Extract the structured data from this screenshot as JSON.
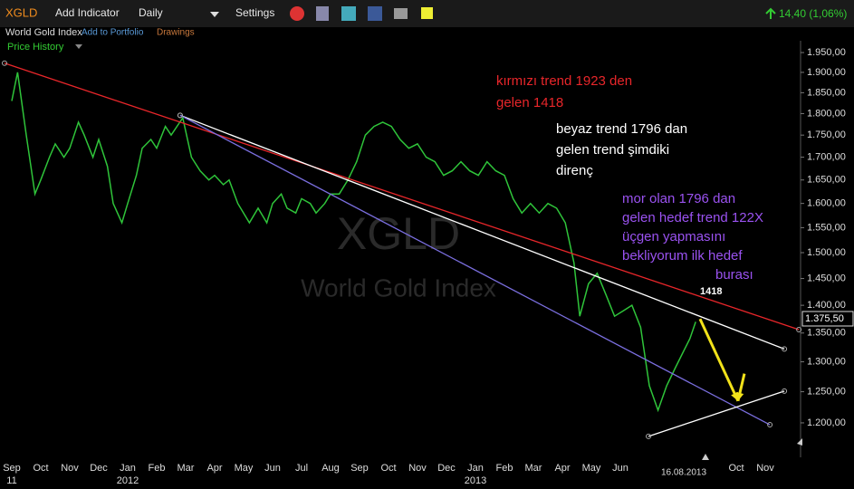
{
  "toolbar": {
    "symbol": "XGLD",
    "add_indicator": "Add Indicator",
    "interval": "Daily",
    "settings": "Settings",
    "change": "14,40 (1,06%)"
  },
  "subbar": {
    "name": "World Gold Index",
    "add_portfolio": "Add to Portfolio",
    "drawings": "Drawings",
    "price_history": "Price History"
  },
  "chart_data": {
    "type": "line",
    "log_scale": true,
    "grid": false,
    "watermark": {
      "symbol": "XGLD",
      "name": "World Gold Index"
    },
    "categories": [
      "Sep",
      "Oct",
      "Nov",
      "Dec",
      "Jan",
      "Feb",
      "Mar",
      "Apr",
      "May",
      "Jun",
      "Jul",
      "Aug",
      "Sep",
      "Oct",
      "Nov",
      "Dec",
      "Jan",
      "Feb",
      "Mar",
      "Apr",
      "May",
      "Jun",
      null,
      null,
      null,
      "Oct",
      "Nov"
    ],
    "year_labels": [
      {
        "index": 0,
        "label": "11"
      },
      {
        "index": 4,
        "label": "2012"
      },
      {
        "index": 16,
        "label": "2013"
      }
    ],
    "cursor_label": "16.08.2013",
    "ylim": [
      1147,
      2016
    ],
    "yticks": [
      {
        "value": 1950,
        "label": "1.950,00"
      },
      {
        "value": 1900,
        "label": "1.900,00"
      },
      {
        "value": 1850,
        "label": "1.850,00"
      },
      {
        "value": 1800,
        "label": "1.800,00"
      },
      {
        "value": 1750,
        "label": "1.750,00"
      },
      {
        "value": 1700,
        "label": "1.700,00"
      },
      {
        "value": 1650,
        "label": "1.650,00"
      },
      {
        "value": 1600,
        "label": "1.600,00"
      },
      {
        "value": 1550,
        "label": "1.550,00"
      },
      {
        "value": 1500,
        "label": "1.500,00"
      },
      {
        "value": 1450,
        "label": "1.450,00"
      },
      {
        "value": 1400,
        "label": "1.400,00"
      },
      {
        "value": 1350,
        "label": "1.350,00"
      },
      {
        "value": 1300,
        "label": "1.300,00"
      },
      {
        "value": 1250,
        "label": "1.250,00"
      },
      {
        "value": 1200,
        "label": "1.200,00"
      }
    ],
    "last_price": {
      "value": 1375.5,
      "label": "1.375,50"
    },
    "series": [
      {
        "name": "Price History",
        "color": "#2fc43a",
        "x": [
          0,
          0.2,
          0.5,
          0.8,
          1.0,
          1.3,
          1.5,
          1.8,
          2.0,
          2.3,
          2.5,
          2.8,
          3.0,
          3.3,
          3.5,
          3.8,
          4.0,
          4.3,
          4.5,
          4.8,
          5.0,
          5.3,
          5.5,
          5.9,
          6.2,
          6.5,
          6.8,
          7.0,
          7.3,
          7.5,
          7.8,
          8.2,
          8.5,
          8.8,
          9.0,
          9.3,
          9.5,
          9.8,
          10.0,
          10.3,
          10.5,
          10.8,
          11.0,
          11.3,
          11.6,
          11.9,
          12.2,
          12.5,
          12.8,
          13.1,
          13.4,
          13.7,
          14.0,
          14.3,
          14.6,
          14.9,
          15.2,
          15.5,
          15.8,
          16.1,
          16.4,
          16.7,
          17.0,
          17.3,
          17.6,
          17.9,
          18.2,
          18.5,
          18.8,
          19.1,
          19.4,
          19.6,
          19.9,
          20.2,
          20.5,
          20.8,
          21.1,
          21.4,
          21.7,
          22.0,
          22.3,
          22.6,
          22.9,
          23.2,
          23.4,
          23.6
        ],
        "values": [
          1830,
          1900,
          1750,
          1620,
          1650,
          1700,
          1730,
          1700,
          1720,
          1780,
          1750,
          1700,
          1740,
          1680,
          1600,
          1560,
          1600,
          1660,
          1720,
          1740,
          1720,
          1770,
          1750,
          1790,
          1700,
          1670,
          1650,
          1660,
          1640,
          1650,
          1600,
          1560,
          1590,
          1560,
          1600,
          1620,
          1590,
          1580,
          1610,
          1600,
          1580,
          1600,
          1620,
          1620,
          1650,
          1690,
          1750,
          1770,
          1780,
          1770,
          1740,
          1720,
          1730,
          1700,
          1690,
          1660,
          1670,
          1690,
          1670,
          1660,
          1690,
          1670,
          1660,
          1610,
          1580,
          1600,
          1580,
          1600,
          1590,
          1560,
          1480,
          1380,
          1440,
          1460,
          1420,
          1380,
          1390,
          1400,
          1360,
          1260,
          1220,
          1260,
          1290,
          1320,
          1340,
          1370
        ]
      }
    ],
    "trend_lines": [
      {
        "color": "#e8262a",
        "x": [
          -0.25,
          27.16
        ],
        "values": [
          1923,
          1356
        ]
      },
      {
        "color": "#ffffff",
        "x": [
          5.81,
          26.66
        ],
        "values": [
          1796,
          1322
        ]
      },
      {
        "color": "#7b6fe0",
        "x": [
          5.81,
          26.16
        ],
        "values": [
          1796,
          1197
        ]
      },
      {
        "color": "#ffffff",
        "x": [
          21.97,
          26.66
        ],
        "values": [
          1179,
          1251
        ]
      }
    ],
    "arrows": [
      {
        "color": "#f2e21a",
        "x": [
          23.75,
          25.06
        ],
        "values": [
          1375,
          1235
        ]
      },
      {
        "color": "#f2e21a",
        "x": [
          25.28,
          25.06
        ],
        "values": [
          1280,
          1235
        ]
      }
    ],
    "annotations": [
      {
        "color": "#e8262a",
        "lines": [
          "kırmızı trend 1923 den",
          "gelen  1418"
        ]
      },
      {
        "color": "#ffffff",
        "lines": [
          "beyaz trend 1796 dan",
          "gelen trend şimdiki",
          "direnç"
        ]
      },
      {
        "color": "#9a52f0",
        "lines": [
          "mor olan 1796 dan",
          "gelen hedef trend 122X",
          "üçgen yapmasını",
          "bekliyorum  ilk hedef",
          "burası"
        ]
      },
      {
        "color": "#ffffff",
        "lines": [
          "1418"
        ]
      }
    ]
  }
}
